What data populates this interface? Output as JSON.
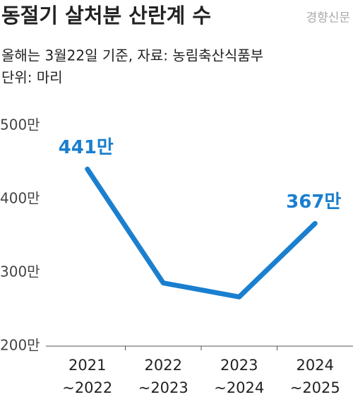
{
  "chart_data": {
    "type": "line",
    "title": "동절기 살처분 산란계 수",
    "source_mark": "경향신문",
    "subtitle": [
      "올해는 3월22일 기준, 자료: 농림축산식품부",
      "단위: 마리"
    ],
    "categories": [
      [
        "2021",
        "~2022"
      ],
      [
        "2022",
        "~2023"
      ],
      [
        "2023",
        "~2024"
      ],
      [
        "2024",
        "~2025"
      ]
    ],
    "values": [
      441,
      286,
      267,
      367
    ],
    "value_labels": [
      "441만",
      null,
      null,
      "367만"
    ],
    "color": "#1a7fcf",
    "ylim": [
      200,
      500
    ],
    "yticks": [
      {
        "value": 500,
        "label": "500만"
      },
      {
        "value": 400,
        "label": "400만"
      },
      {
        "value": 300,
        "label": "300만"
      },
      {
        "value": 200,
        "label": "200만"
      }
    ],
    "grid": false
  }
}
